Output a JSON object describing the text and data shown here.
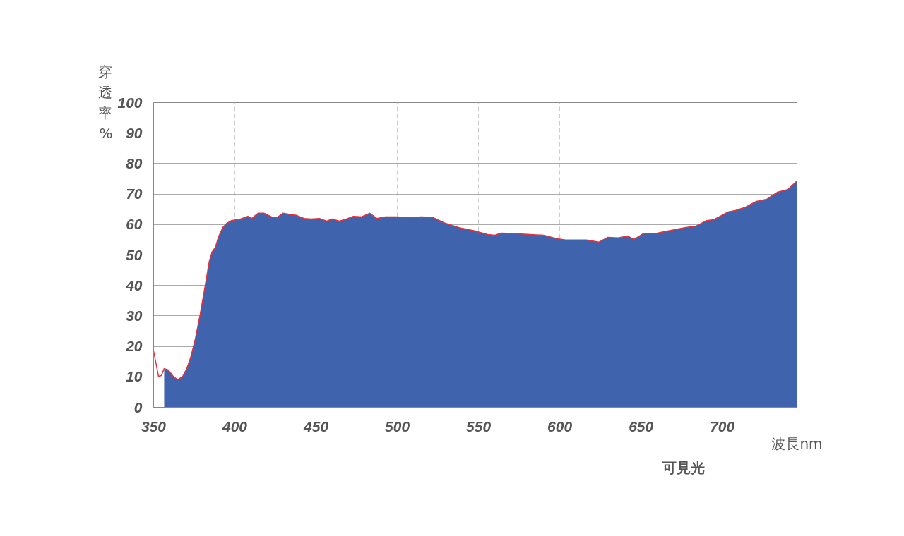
{
  "chart_data": {
    "type": "area",
    "xlabel": "波長nm",
    "ylabel": "穿透率%",
    "annotations": [
      "可見光"
    ],
    "xlim": [
      350,
      746
    ],
    "xticks": [
      350,
      400,
      450,
      500,
      550,
      600,
      650,
      700
    ],
    "ylim": [
      0,
      100
    ],
    "yticks": [
      0,
      10,
      20,
      30,
      40,
      50,
      60,
      70,
      80,
      90,
      100
    ],
    "grid": true,
    "series": [
      {
        "color": "#3f63ad",
        "x": [
          356.5,
          359,
          362,
          364.8,
          368,
          370.4,
          373,
          375.7,
          378.7,
          381.7,
          384.3,
          386,
          388,
          390,
          392.6,
          395,
          398,
          403.5,
          408,
          410.4,
          414.3,
          418,
          422.6,
          426,
          429.6,
          435,
          438,
          442.6,
          447,
          452,
          456.5,
          460,
          464.3,
          468.7,
          473,
          478,
          483,
          487.4,
          492.6,
          499,
          508,
          515,
          522,
          529.6,
          538,
          547,
          555.6,
          560,
          564,
          573,
          581.7,
          590,
          598.7,
          603.5,
          610,
          616.5,
          624,
          629.6,
          636,
          641.7,
          645.7,
          651.3,
          660,
          668.7,
          677,
          684,
          690.4,
          694.8,
          703.5,
          708,
          714.3,
          721,
          727.4,
          733.9,
          740.4,
          746
        ],
        "values": [
          12.7,
          12.3,
          10.2,
          9,
          10.2,
          12.7,
          16.7,
          22.5,
          30.6,
          39.8,
          48,
          51,
          52.5,
          56,
          59,
          60.4,
          61.3,
          61.8,
          62.7,
          62,
          63.7,
          63.7,
          62.5,
          62.3,
          63.7,
          63.2,
          63,
          62,
          61.8,
          62,
          61.1,
          61.8,
          61.1,
          61.8,
          62.7,
          62.5,
          63.7,
          62,
          62.5,
          62.5,
          62.3,
          62.5,
          62.3,
          60.4,
          59,
          58,
          56.7,
          56.5,
          57.2,
          57,
          56.7,
          56.5,
          55.3,
          54.9,
          54.9,
          54.9,
          54.2,
          55.8,
          55.6,
          56.2,
          55.1,
          57,
          57.2,
          58.1,
          59,
          59.5,
          61.3,
          61.6,
          64.1,
          64.6,
          65.7,
          67.6,
          68.3,
          70.6,
          71.5,
          74.3
        ]
      },
      {
        "type": "line",
        "color": "#e8303a",
        "x": [
          350,
          353,
          354.8,
          356.5,
          359,
          362,
          364.8,
          368,
          370.4,
          373,
          375.7,
          378.7,
          381.7,
          384.3,
          386,
          388,
          390,
          392.6,
          395,
          398,
          403.5,
          408,
          410.4,
          414.3,
          418,
          422.6,
          426,
          429.6,
          435,
          438,
          442.6,
          447,
          452,
          456.5,
          460,
          464.3,
          468.7,
          473,
          478,
          483,
          487.4,
          492.6,
          499,
          508,
          515,
          522,
          529.6,
          538,
          547,
          555.6,
          560,
          564,
          573,
          581.7,
          590,
          598.7,
          603.5,
          610,
          616.5,
          624,
          629.6,
          636,
          641.7,
          645.7,
          651.3,
          660,
          668.7,
          677,
          684,
          690.4,
          694.8,
          703.5,
          708,
          714.3,
          721,
          727.4,
          733.9,
          740.4,
          746
        ],
        "values": [
          18.5,
          10.2,
          10.4,
          12.7,
          12.3,
          10.2,
          9,
          10.2,
          12.7,
          16.7,
          22.5,
          30.6,
          39.8,
          48,
          51,
          52.5,
          56,
          59,
          60.4,
          61.3,
          61.8,
          62.7,
          62,
          63.7,
          63.7,
          62.5,
          62.3,
          63.7,
          63.2,
          63,
          62,
          61.8,
          62,
          61.1,
          61.8,
          61.1,
          61.8,
          62.7,
          62.5,
          63.7,
          62,
          62.5,
          62.5,
          62.3,
          62.5,
          62.3,
          60.4,
          59,
          58,
          56.7,
          56.5,
          57.2,
          57,
          56.7,
          56.5,
          55.3,
          54.9,
          54.9,
          54.9,
          54.2,
          55.8,
          55.6,
          56.2,
          55.1,
          57,
          57.2,
          58.1,
          59,
          59.5,
          61.3,
          61.6,
          64.1,
          64.6,
          65.7,
          67.6,
          68.3,
          70.6,
          71.5,
          74.3
        ]
      }
    ]
  }
}
